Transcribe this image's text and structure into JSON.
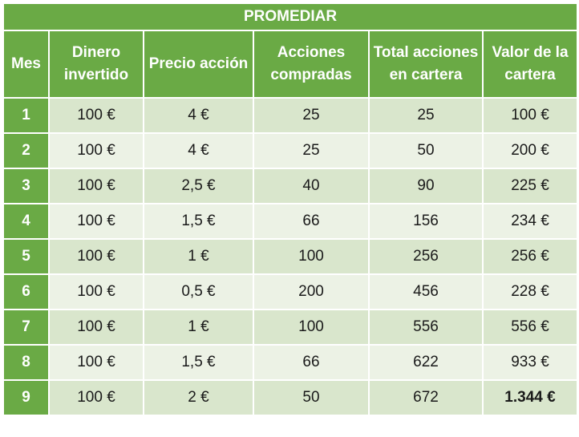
{
  "table": {
    "title": "PROMEDIAR",
    "headers": [
      {
        "line1": "Mes",
        "line2": ""
      },
      {
        "line1": "Dinero",
        "line2": "invertido"
      },
      {
        "line1": "Precio acción",
        "line2": ""
      },
      {
        "line1": "Acciones",
        "line2": "compradas"
      },
      {
        "line1": "Total acciones",
        "line2": "en cartera"
      },
      {
        "line1": "Valor de la",
        "line2": "cartera"
      }
    ],
    "rows": [
      [
        "1",
        "100 €",
        "4 €",
        "25",
        "25",
        "100 €"
      ],
      [
        "2",
        "100 €",
        "4 €",
        "25",
        "50",
        "200 €"
      ],
      [
        "3",
        "100 €",
        "2,5 €",
        "40",
        "90",
        "225 €"
      ],
      [
        "4",
        "100 €",
        "1,5 €",
        "66",
        "156",
        "234 €"
      ],
      [
        "5",
        "100 €",
        "1 €",
        "100",
        "256",
        "256 €"
      ],
      [
        "6",
        "100 €",
        "0,5 €",
        "200",
        "456",
        "228 €"
      ],
      [
        "7",
        "100 €",
        "1 €",
        "100",
        "556",
        "556 €"
      ],
      [
        "8",
        "100 €",
        "1,5 €",
        "66",
        "622",
        "933 €"
      ],
      [
        "9",
        "100 €",
        "2 €",
        "50",
        "672",
        "1.344 €"
      ]
    ],
    "emphasized_cell": "1.344 €",
    "colors": {
      "header_green": "#6aaa45",
      "row_dark": "#d9e6cc",
      "row_light": "#ecf2e5",
      "header_text": "#ffffff"
    }
  }
}
